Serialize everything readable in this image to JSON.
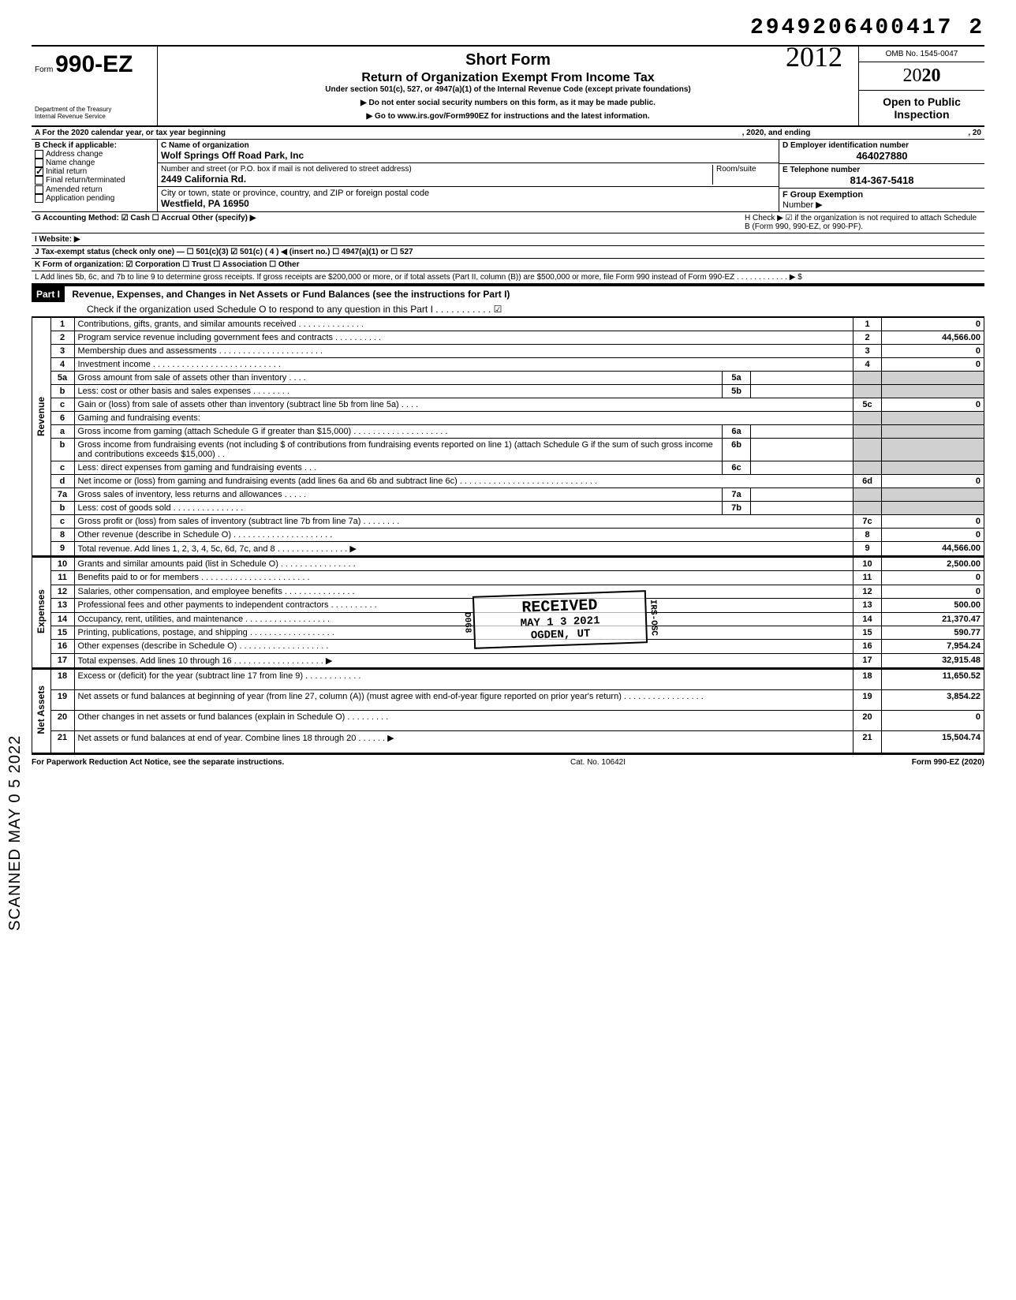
{
  "header_id": "2949206400417 2",
  "scanned_text": "SCANNED  MAY 0 5 2022",
  "form": {
    "prefix": "Form",
    "number": "990-EZ",
    "dept1": "Department of the Treasury",
    "dept2": "Internal Revenue Service",
    "title": "Short Form",
    "subtitle": "Return of Organization Exempt From Income Tax",
    "under": "Under section 501(c), 527, or 4947(a)(1) of the Internal Revenue Code (except private foundations)",
    "note1": "▶ Do not enter social security numbers on this form, as it may be made public.",
    "note2": "▶ Go to www.irs.gov/Form990EZ for instructions and the latest information.",
    "handwritten_year": "2012",
    "omb": "OMB No. 1545-0047",
    "tax_year_prefix": "20",
    "tax_year_bold": "20",
    "open_public": "Open to Public Inspection"
  },
  "rowA": {
    "left": "A For the 2020 calendar year, or tax year beginning",
    "mid": ", 2020, and ending",
    "right": ", 20"
  },
  "colB": {
    "header": "B Check if applicable:",
    "items": [
      {
        "chk": false,
        "label": "Address change"
      },
      {
        "chk": false,
        "label": "Name change"
      },
      {
        "chk": true,
        "label": "Initial return"
      },
      {
        "chk": false,
        "label": "Final return/terminated"
      },
      {
        "chk": false,
        "label": "Amended return"
      },
      {
        "chk": false,
        "label": "Application pending"
      }
    ]
  },
  "colC": {
    "c_label": "C  Name of organization",
    "c_val": "Wolf Springs Off Road Park, Inc",
    "addr_label": "Number and street (or P.O. box if mail is not delivered to street address)",
    "room_label": "Room/suite",
    "addr_val": "2449 California Rd.",
    "city_label": "City or town, state or province, country, and ZIP or foreign postal code",
    "city_val": "Westfield, PA 16950"
  },
  "colDE": {
    "d_label": "D Employer identification number",
    "d_val": "464027880",
    "e_label": "E Telephone number",
    "e_val": "814-367-5418",
    "f_label": "F Group Exemption",
    "f_label2": "Number ▶"
  },
  "rowsGHIJKL": {
    "G": "G Accounting Method:   ☑ Cash   ☐ Accrual   Other (specify) ▶",
    "H": "H Check ▶ ☑ if the organization is not required to attach Schedule B (Form 990, 990-EZ, or 990-PF).",
    "I": "I  Website: ▶",
    "J": "J Tax-exempt status (check only one) — ☐ 501(c)(3)   ☑ 501(c) (  4  ) ◀ (insert no.)  ☐ 4947(a)(1) or   ☐ 527",
    "K": "K Form of organization:   ☑ Corporation   ☐ Trust   ☐ Association   ☐ Other",
    "L": "L Add lines 5b, 6c, and 7b to line 9 to determine gross receipts. If gross receipts are $200,000 or more, or if total assets (Part II, column (B)) are $500,000 or more, file Form 990 instead of Form 990-EZ . . . . . . . . . . . . ▶  $"
  },
  "part1": {
    "label": "Part I",
    "title": "Revenue, Expenses, and Changes in Net Assets or Fund Balances (see the instructions for Part I)",
    "check_line": "Check if the organization used Schedule O to respond to any question in this Part I . . . . . . . . . . .  ☑"
  },
  "sections": {
    "revenue": "Revenue",
    "expenses": "Expenses",
    "netassets": "Net Assets"
  },
  "lines": {
    "l1": {
      "n": "1",
      "d": "Contributions, gifts, grants, and similar amounts received . . . . . . . . . . . . . .",
      "rn": "1",
      "rv": "0"
    },
    "l2": {
      "n": "2",
      "d": "Program service revenue including government fees and contracts  . . . . . . . . . .",
      "rn": "2",
      "rv": "44,566.00"
    },
    "l3": {
      "n": "3",
      "d": "Membership dues and assessments . . . . . . . . . . . . . . . . . . . . . .",
      "rn": "3",
      "rv": "0"
    },
    "l4": {
      "n": "4",
      "d": "Investment income  . . . . . . . . . . . . . . . . . . . . . . . . . . .",
      "rn": "4",
      "rv": "0"
    },
    "l5a": {
      "n": "5a",
      "d": "Gross amount from sale of assets other than inventory  . . . .",
      "sn": "5a",
      "sv": ""
    },
    "l5b": {
      "n": "b",
      "d": "Less: cost or other basis and sales expenses . . . . . . . .",
      "sn": "5b",
      "sv": ""
    },
    "l5c": {
      "n": "c",
      "d": "Gain or (loss) from sale of assets other than inventory (subtract line 5b from line 5a) . . . .",
      "rn": "5c",
      "rv": "0"
    },
    "l6": {
      "n": "6",
      "d": "Gaming and fundraising events:"
    },
    "l6a": {
      "n": "a",
      "d": "Gross income from gaming (attach Schedule G if greater than $15,000) . . . . . . . . . . . . . . . . . . . .",
      "sn": "6a",
      "sv": ""
    },
    "l6b": {
      "n": "b",
      "d": "Gross income from fundraising events (not including  $                     of contributions from fundraising events reported on line 1) (attach Schedule G if the sum of such gross income and contributions exceeds $15,000) . .",
      "sn": "6b",
      "sv": ""
    },
    "l6c": {
      "n": "c",
      "d": "Less: direct expenses from gaming and fundraising events  . . .",
      "sn": "6c",
      "sv": ""
    },
    "l6d": {
      "n": "d",
      "d": "Net income or (loss) from gaming and fundraising events (add lines 6a and 6b and subtract line 6c)  . . . . . . . . . . . . . . . . . . . . . . . . . . . . .",
      "rn": "6d",
      "rv": "0"
    },
    "l7a": {
      "n": "7a",
      "d": "Gross sales of inventory, less returns and allowances . . . . .",
      "sn": "7a",
      "sv": ""
    },
    "l7b": {
      "n": "b",
      "d": "Less: cost of goods sold  . . . . . . . . . . . . . . .",
      "sn": "7b",
      "sv": ""
    },
    "l7c": {
      "n": "c",
      "d": "Gross profit or (loss) from sales of inventory (subtract line 7b from line 7a)  . . . . . . . .",
      "rn": "7c",
      "rv": "0"
    },
    "l8": {
      "n": "8",
      "d": "Other revenue (describe in Schedule O) . . . . . . . . . . . . . . . . . . . . .",
      "rn": "8",
      "rv": "0"
    },
    "l9": {
      "n": "9",
      "d": "Total revenue. Add lines 1, 2, 3, 4, 5c, 6d, 7c, and 8 . . . . . . . . . . . . . . . ▶",
      "rn": "9",
      "rv": "44,566.00"
    },
    "l10": {
      "n": "10",
      "d": "Grants and similar amounts paid (list in Schedule O) . . . . . . . . . . . . . . . .",
      "rn": "10",
      "rv": "2,500.00"
    },
    "l11": {
      "n": "11",
      "d": "Benefits paid to or for members . . . . . . . . . . . . . . . . . . . . . . .",
      "rn": "11",
      "rv": "0"
    },
    "l12": {
      "n": "12",
      "d": "Salaries, other compensation, and employee benefits . . . . . . . . . . . . . . .",
      "rn": "12",
      "rv": "0"
    },
    "l13": {
      "n": "13",
      "d": "Professional fees and other payments to independent contractors . . . . . . . . . .",
      "rn": "13",
      "rv": "500.00"
    },
    "l14": {
      "n": "14",
      "d": "Occupancy, rent, utilities, and maintenance  . . . . . . . . . . . . . . . . . .",
      "rn": "14",
      "rv": "21,370.47"
    },
    "l15": {
      "n": "15",
      "d": "Printing, publications, postage, and shipping . . . . . . . . . . . . . . . . . .",
      "rn": "15",
      "rv": "590.77"
    },
    "l16": {
      "n": "16",
      "d": "Other expenses (describe in Schedule O) . . . . . . . . . . . . . . . . . . .",
      "rn": "16",
      "rv": "7,954.24"
    },
    "l17": {
      "n": "17",
      "d": "Total expenses. Add lines 10 through 16 . . . . . . . . . . . . . . . . . . . ▶",
      "rn": "17",
      "rv": "32,915.48"
    },
    "l18": {
      "n": "18",
      "d": "Excess or (deficit) for the year (subtract line 17 from line 9)  . . . . . . . . . . . .",
      "rn": "18",
      "rv": "11,650.52"
    },
    "l19": {
      "n": "19",
      "d": "Net assets or fund balances at beginning of year (from line 27, column (A)) (must agree with end-of-year figure reported on prior year's return)  . . . . . . . . . . . . . . . . .",
      "rn": "19",
      "rv": "3,854.22"
    },
    "l20": {
      "n": "20",
      "d": "Other changes in net assets or fund balances (explain in Schedule O) . . . . . . . . .",
      "rn": "20",
      "rv": "0"
    },
    "l21": {
      "n": "21",
      "d": "Net assets or fund balances at end of year. Combine lines 18 through 20  . . . . . . ▶",
      "rn": "21",
      "rv": "15,504.74"
    }
  },
  "stamp": {
    "l1": "RECEIVED",
    "l2": "MAY 1 3 2021",
    "l3": "OGDEN, UT",
    "side_right": "IRS-OSC",
    "side_left": "D068"
  },
  "footer": {
    "left": "For Paperwork Reduction Act Notice, see the separate instructions.",
    "mid": "Cat. No. 10642I",
    "right": "Form 990-EZ (2020)"
  }
}
